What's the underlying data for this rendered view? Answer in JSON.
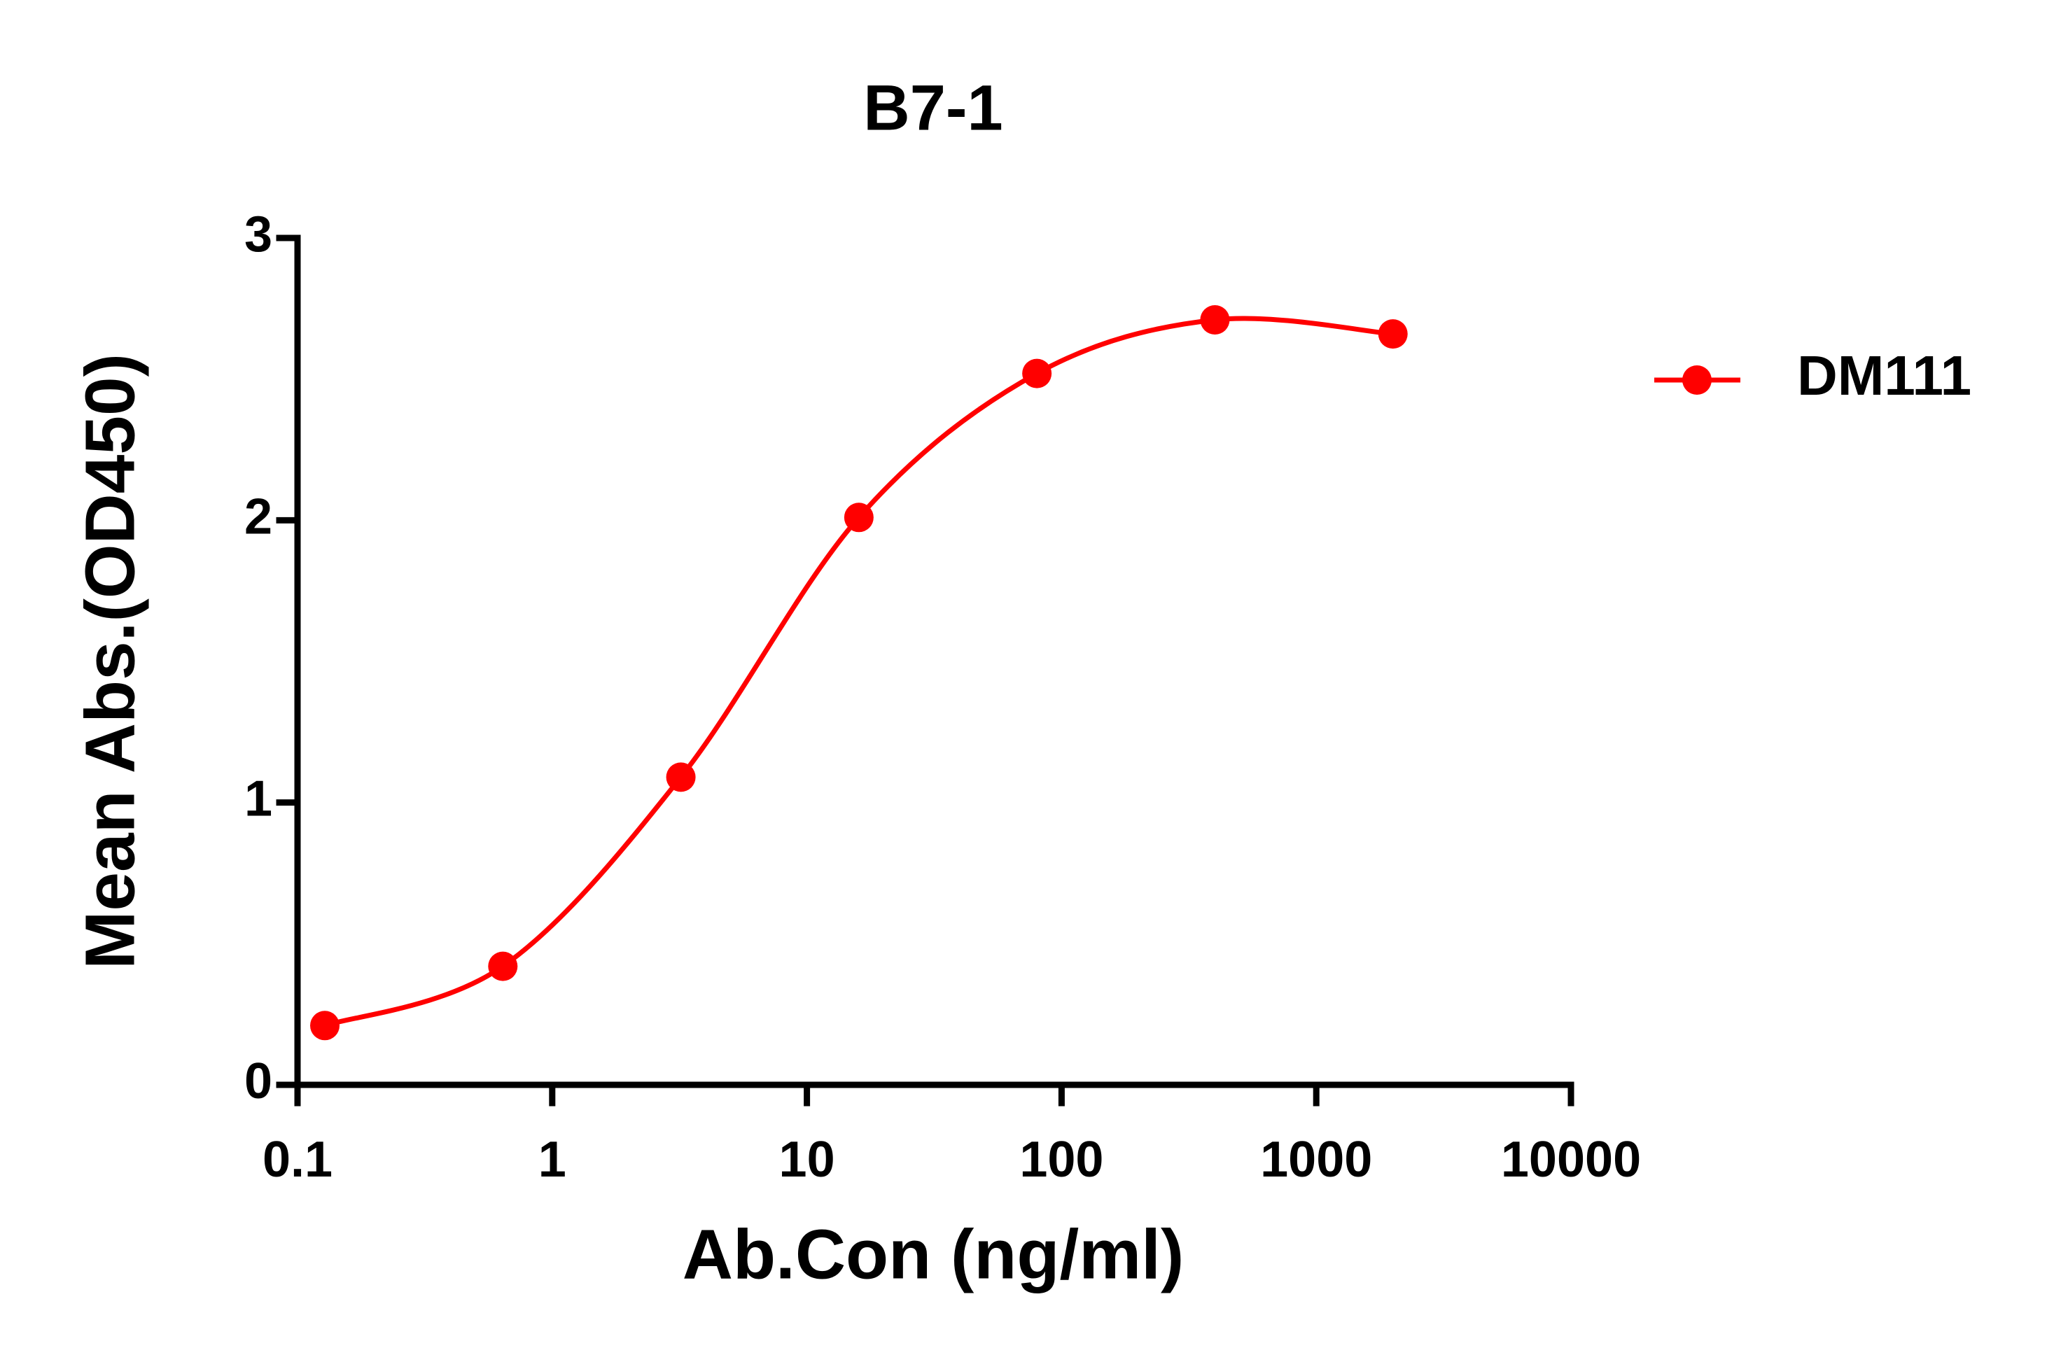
{
  "chart_data": {
    "type": "line",
    "title": "B7-1",
    "x_label": "Ab.Con (ng/ml)",
    "y_label": "Mean Abs.(OD450)",
    "x_scale": "log",
    "x": [
      0.128,
      0.64,
      3.2,
      16,
      80,
      400,
      2000
    ],
    "series": [
      {
        "name": "DM111",
        "color": "#ff0000",
        "values": [
          0.21,
          0.42,
          1.09,
          2.01,
          2.52,
          2.71,
          2.66
        ]
      }
    ],
    "xlim": [
      0.1,
      10000
    ],
    "xticks": [
      0.1,
      1,
      10,
      100,
      1000,
      10000
    ],
    "ylim": [
      0,
      3
    ],
    "yticks": [
      0,
      1,
      2,
      3
    ],
    "legend": "right"
  }
}
